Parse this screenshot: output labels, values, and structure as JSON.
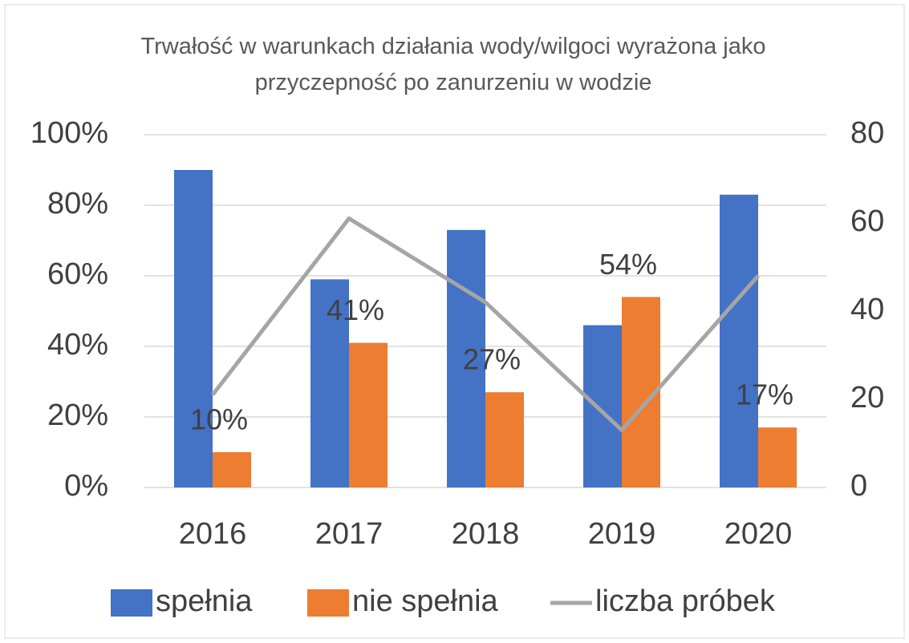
{
  "chart_data": {
    "type": "bar_line",
    "title": "Trwałość w warunkach działania wody/wilgoci wyrażona jako przyczepność po zanurzeniu w wodzie",
    "categories": [
      "2016",
      "2017",
      "2018",
      "2019",
      "2020"
    ],
    "series": [
      {
        "name": "spełnia",
        "type": "bar",
        "color": "#4472c4",
        "values": [
          90,
          59,
          73,
          46,
          83
        ]
      },
      {
        "name": "nie spełnia",
        "type": "bar",
        "color": "#ed7d31",
        "values": [
          10,
          41,
          27,
          54,
          17
        ],
        "value_labels": [
          "10%",
          "41%",
          "27%",
          "54%",
          "17%"
        ]
      },
      {
        "name": "liczba próbek",
        "type": "line",
        "axis": "y2",
        "color": "#a5a5a5",
        "values": [
          21,
          61,
          42,
          13,
          48
        ]
      }
    ],
    "ylim": [
      0,
      100
    ],
    "yticks": [
      {
        "value": 0,
        "label": "0%"
      },
      {
        "value": 20,
        "label": "20%"
      },
      {
        "value": 40,
        "label": "40%"
      },
      {
        "value": 60,
        "label": "60%"
      },
      {
        "value": 80,
        "label": "80%"
      },
      {
        "value": 100,
        "label": "100%"
      }
    ],
    "y2lim": [
      0,
      80
    ],
    "y2ticks": [
      0,
      20,
      40,
      60,
      80
    ],
    "grid": true,
    "legend": "bottom"
  }
}
